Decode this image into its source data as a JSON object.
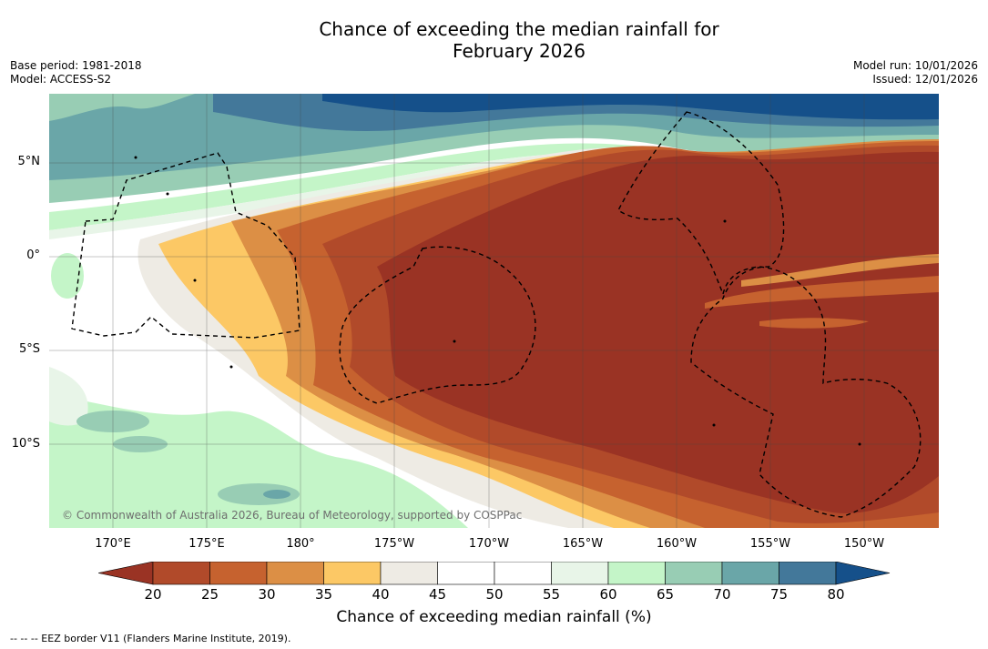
{
  "title_line1": "Chance of exceeding the median rainfall for",
  "title_line2": "February 2026",
  "base_period": "Base period: 1981-2018",
  "model": "Model: ACCESS-S2",
  "model_run": "Model run: 10/01/2026",
  "issued": "Issued: 12/01/2026",
  "lat_labels": [
    "5°N",
    "0°",
    "5°S",
    "10°S"
  ],
  "lon_labels": [
    "170°E",
    "175°E",
    "180°",
    "175°W",
    "170°W",
    "165°W",
    "160°W",
    "155°W",
    "150°W"
  ],
  "copyright": "© Commonwealth of Australia 2026, Bureau of Meteorology, supported by COSPPac",
  "colorbar": {
    "ticks": [
      "20",
      "25",
      "30",
      "35",
      "40",
      "45",
      "50",
      "55",
      "60",
      "65",
      "70",
      "75",
      "80"
    ],
    "label": "Chance of exceeding median rainfall (%)",
    "colors": [
      "#9a3324",
      "#b14a2a",
      "#c6622f",
      "#dc8f45",
      "#fcc865",
      "#eeebe4",
      "#ffffff",
      "#ffffff",
      "#e8f5e8",
      "#c4f5c8",
      "#98cdb4",
      "#6aa6a8",
      "#43789a",
      "#15508a"
    ]
  },
  "legend_text": "--  --  -- EEZ border V11 (Flanders Marine Institute, 2019)."
}
